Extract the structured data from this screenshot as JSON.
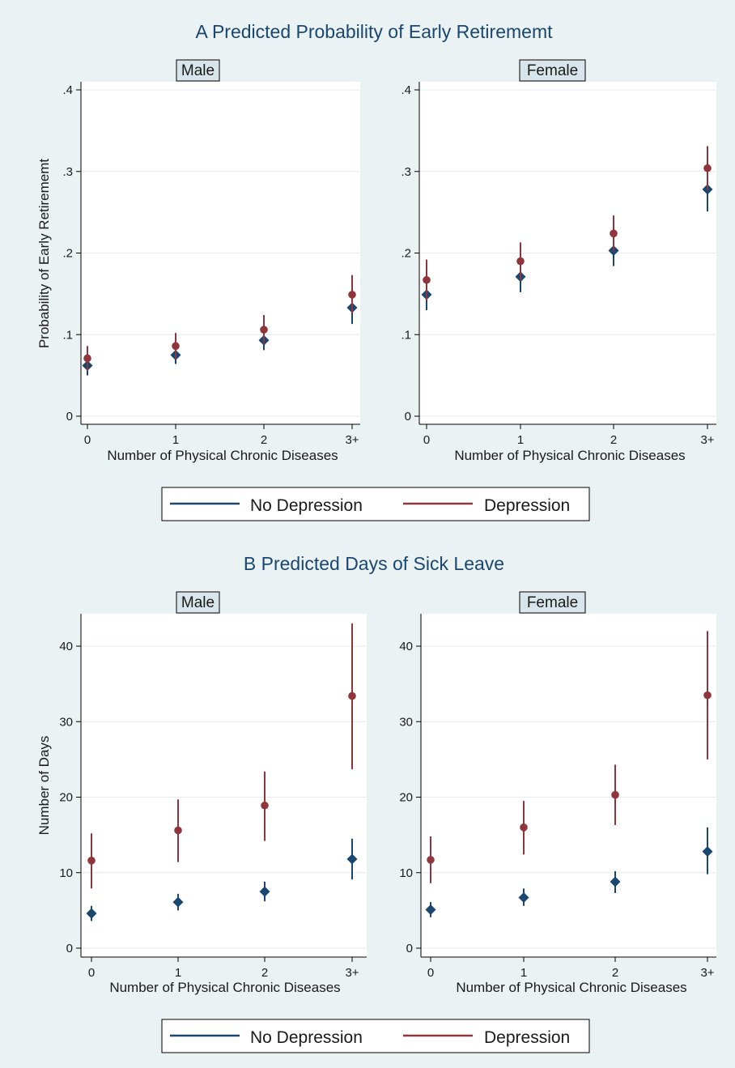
{
  "colors": {
    "background": "#eaf2f3",
    "plot_background": "#ffffff",
    "strip": "#d9e5ec",
    "no_depression": "#1a476f",
    "depression": "#90353b",
    "grid": "#e3ebee",
    "axis": "#000000"
  },
  "legend": {
    "items": [
      {
        "label": "No Depression",
        "color": "#1a476f"
      },
      {
        "label": "Depression",
        "color": "#90353b"
      }
    ]
  },
  "chart_data": [
    {
      "type": "scatter",
      "title": "A Predicted Probability of Early Retirememt",
      "ylabel": "Probability of Early Retirememt",
      "xlabel": "Number of Physical Chronic Diseases",
      "categories": [
        "0",
        "1",
        "2",
        "3+"
      ],
      "yticks": [
        {
          "value": 0,
          "label": "0"
        },
        {
          "value": 0.1,
          "label": ".1"
        },
        {
          "value": 0.2,
          "label": ".2"
        },
        {
          "value": 0.3,
          "label": ".3"
        },
        {
          "value": 0.4,
          "label": ".4"
        }
      ],
      "ylim": [
        0,
        0.4
      ],
      "grid": true,
      "legend_position": "bottom",
      "panels": [
        {
          "label": "Male",
          "series": [
            {
              "name": "No Depression",
              "marker": "diamond",
              "values": [
                0.062,
                0.075,
                0.093,
                0.133
              ],
              "lower": [
                0.05,
                0.064,
                0.081,
                0.113
              ],
              "upper": [
                0.074,
                0.086,
                0.105,
                0.153
              ]
            },
            {
              "name": "Depression",
              "marker": "circle",
              "values": [
                0.071,
                0.086,
                0.106,
                0.149
              ],
              "lower": [
                0.056,
                0.07,
                0.088,
                0.126
              ],
              "upper": [
                0.086,
                0.102,
                0.124,
                0.173
              ]
            }
          ]
        },
        {
          "label": "Female",
          "series": [
            {
              "name": "No Depression",
              "marker": "diamond",
              "values": [
                0.149,
                0.171,
                0.203,
                0.278
              ],
              "lower": [
                0.13,
                0.152,
                0.184,
                0.251
              ],
              "upper": [
                0.168,
                0.19,
                0.222,
                0.305
              ]
            },
            {
              "name": "Depression",
              "marker": "circle",
              "values": [
                0.167,
                0.19,
                0.224,
                0.304
              ],
              "lower": [
                0.142,
                0.167,
                0.202,
                0.277
              ],
              "upper": [
                0.192,
                0.213,
                0.246,
                0.331
              ]
            }
          ]
        }
      ]
    },
    {
      "type": "scatter",
      "title": "B Predicted Days of Sick Leave",
      "ylabel": "Number of Days",
      "xlabel": "Number of Physical Chronic Diseases",
      "categories": [
        "0",
        "1",
        "2",
        "3+"
      ],
      "yticks": [
        {
          "value": 0,
          "label": "0"
        },
        {
          "value": 10,
          "label": "10"
        },
        {
          "value": 20,
          "label": "20"
        },
        {
          "value": 30,
          "label": "30"
        },
        {
          "value": 40,
          "label": "40"
        }
      ],
      "ylim": [
        -1.2,
        44
      ],
      "grid": true,
      "legend_position": "bottom",
      "panels": [
        {
          "label": "Male",
          "series": [
            {
              "name": "No Depression",
              "marker": "diamond",
              "values": [
                4.6,
                6.1,
                7.5,
                11.8
              ],
              "lower": [
                3.6,
                5.0,
                6.2,
                9.1
              ],
              "upper": [
                5.6,
                7.2,
                8.8,
                14.5
              ]
            },
            {
              "name": "Depression",
              "marker": "circle",
              "values": [
                11.6,
                15.6,
                18.9,
                33.4
              ],
              "lower": [
                7.9,
                11.4,
                14.2,
                23.7
              ],
              "upper": [
                15.2,
                19.7,
                23.4,
                43.0
              ]
            }
          ]
        },
        {
          "label": "Female",
          "series": [
            {
              "name": "No Depression",
              "marker": "diamond",
              "values": [
                5.1,
                6.7,
                8.8,
                12.8
              ],
              "lower": [
                4.1,
                5.6,
                7.3,
                9.8
              ],
              "upper": [
                6.1,
                7.9,
                10.2,
                16.0
              ]
            },
            {
              "name": "Depression",
              "marker": "circle",
              "values": [
                11.7,
                16.0,
                20.3,
                33.5
              ],
              "lower": [
                8.6,
                12.4,
                16.3,
                25.0
              ],
              "upper": [
                14.8,
                19.5,
                24.3,
                42.0
              ]
            }
          ]
        }
      ]
    }
  ]
}
